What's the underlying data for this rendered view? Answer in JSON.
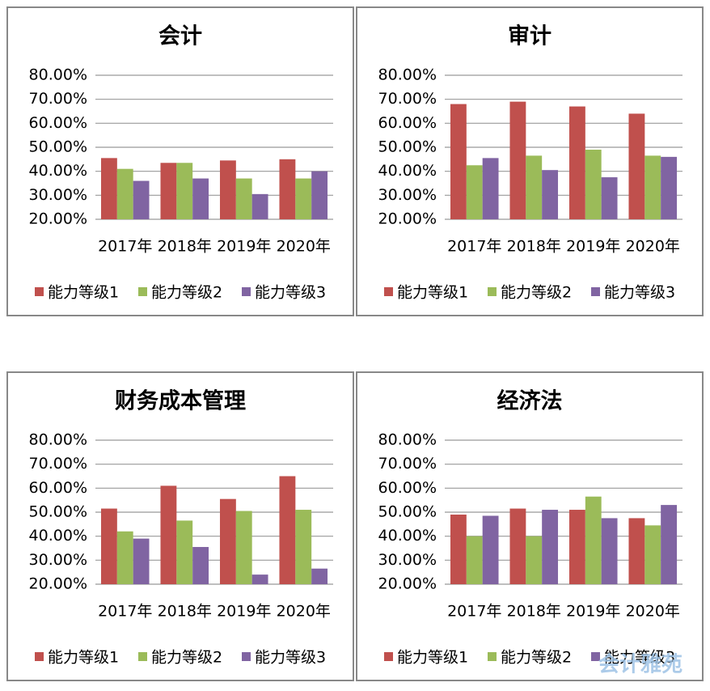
{
  "chart_data": [
    {
      "type": "bar",
      "title": "会计",
      "categories": [
        "2017年",
        "2018年",
        "2019年",
        "2020年"
      ],
      "series": [
        {
          "name": "能力等级1",
          "color": "#c0504d",
          "values": [
            45.5,
            43.5,
            44.5,
            45
          ]
        },
        {
          "name": "能力等级2",
          "color": "#9bbb59",
          "values": [
            41,
            43.5,
            37,
            37
          ]
        },
        {
          "name": "能力等级3",
          "color": "#8064a2",
          "values": [
            36,
            37,
            30.5,
            40
          ]
        }
      ],
      "ylim": [
        20,
        80
      ],
      "yticks": [
        {
          "value": 20,
          "label": "20.00%"
        },
        {
          "value": 30,
          "label": "30.00%"
        },
        {
          "value": 40,
          "label": "40.00%"
        },
        {
          "value": 50,
          "label": "50.00%"
        },
        {
          "value": 60,
          "label": "60.00%"
        },
        {
          "value": 70,
          "label": "70.00%"
        },
        {
          "value": 80,
          "label": "80.00%"
        }
      ],
      "grid": true,
      "legend": "bottom"
    },
    {
      "type": "bar",
      "title": "审计",
      "categories": [
        "2017年",
        "2018年",
        "2019年",
        "2020年"
      ],
      "series": [
        {
          "name": "能力等级1",
          "color": "#c0504d",
          "values": [
            68,
            69,
            67,
            64
          ]
        },
        {
          "name": "能力等级2",
          "color": "#9bbb59",
          "values": [
            42.5,
            46.5,
            49,
            46.5
          ]
        },
        {
          "name": "能力等级3",
          "color": "#8064a2",
          "values": [
            45.5,
            40.5,
            37.5,
            46
          ]
        }
      ],
      "ylim": [
        20,
        80
      ],
      "yticks": [
        {
          "value": 20,
          "label": "20.00%"
        },
        {
          "value": 30,
          "label": "30.00%"
        },
        {
          "value": 40,
          "label": "40.00%"
        },
        {
          "value": 50,
          "label": "50.00%"
        },
        {
          "value": 60,
          "label": "60.00%"
        },
        {
          "value": 70,
          "label": "70.00%"
        },
        {
          "value": 80,
          "label": "80.00%"
        }
      ],
      "grid": true,
      "legend": "bottom"
    },
    {
      "type": "bar",
      "title": "财务成本管理",
      "categories": [
        "2017年",
        "2018年",
        "2019年",
        "2020年"
      ],
      "series": [
        {
          "name": "能力等级1",
          "color": "#c0504d",
          "values": [
            51.5,
            61,
            55.5,
            65
          ]
        },
        {
          "name": "能力等级2",
          "color": "#9bbb59",
          "values": [
            42,
            46.5,
            50.5,
            51
          ]
        },
        {
          "name": "能力等级3",
          "color": "#8064a2",
          "values": [
            39,
            35.5,
            24,
            26.5
          ]
        }
      ],
      "ylim": [
        20,
        80
      ],
      "yticks": [
        {
          "value": 20,
          "label": "20.00%"
        },
        {
          "value": 30,
          "label": "30.00%"
        },
        {
          "value": 40,
          "label": "40.00%"
        },
        {
          "value": 50,
          "label": "50.00%"
        },
        {
          "value": 60,
          "label": "60.00%"
        },
        {
          "value": 70,
          "label": "70.00%"
        },
        {
          "value": 80,
          "label": "80.00%"
        }
      ],
      "grid": true,
      "legend": "bottom"
    },
    {
      "type": "bar",
      "title": "经济法",
      "categories": [
        "2017年",
        "2018年",
        "2019年",
        "2020年"
      ],
      "series": [
        {
          "name": "能力等级1",
          "color": "#c0504d",
          "values": [
            49,
            51.5,
            51,
            47.5
          ]
        },
        {
          "name": "能力等级2",
          "color": "#9bbb59",
          "values": [
            40,
            40,
            56.5,
            44.5
          ]
        },
        {
          "name": "能力等级3",
          "color": "#8064a2",
          "values": [
            48.5,
            51,
            47.5,
            53
          ]
        }
      ],
      "ylim": [
        20,
        80
      ],
      "yticks": [
        {
          "value": 20,
          "label": "20.00%"
        },
        {
          "value": 30,
          "label": "30.00%"
        },
        {
          "value": 40,
          "label": "40.00%"
        },
        {
          "value": 50,
          "label": "50.00%"
        },
        {
          "value": 60,
          "label": "60.00%"
        },
        {
          "value": 70,
          "label": "70.00%"
        },
        {
          "value": 80,
          "label": "80.00%"
        }
      ],
      "grid": true,
      "legend": "bottom"
    }
  ],
  "watermark": "会计雅苑"
}
